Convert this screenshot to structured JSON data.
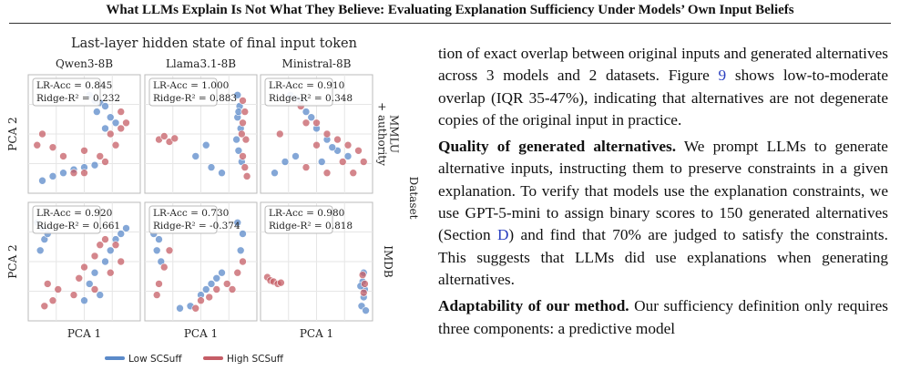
{
  "header": {
    "title": "What LLMs Explain Is Not What They Believe: Evaluating Explanation Sufficiency Under Models’ Own Input Beliefs"
  },
  "figure": {
    "type": "scatter",
    "title": "Last-layer hidden state of final input token",
    "xlabel": "PCA 1",
    "ylabel": "PCA 2",
    "row_title": "Dataset",
    "columns": [
      "Qwen3-8B",
      "Llama3.1-8B",
      "Ministral-8B"
    ],
    "row_labels": [
      [
        "MMLU",
        "+ authority"
      ],
      [
        "IMDB"
      ]
    ],
    "xlim": [
      0,
      10
    ],
    "ylim": [
      0,
      10
    ],
    "grid": true,
    "series": [
      {
        "name": "Low SCSuff",
        "color": "#5b8ac9"
      },
      {
        "name": "High SCSuff",
        "color": "#c55d66"
      }
    ],
    "panels": [
      [
        {
          "lr_acc": "LR-Acc = 0.845",
          "ridge": "Ridge-R² = 0.232",
          "series": [
            {
              "x": [
                5.5,
                6,
                6.5,
                7,
                6.2,
                7.5,
                8,
                2,
                3,
                4,
                5,
                6,
                1,
                7
              ],
              "y": [
                8.5,
                8,
                7.8,
                7.5,
                7,
                6.5,
                6,
                1.2,
                1.5,
                1.8,
                2,
                2.2,
                0.8,
                5.5
              ]
            },
            {
              "x": [
                8.5,
                9,
                8,
                7.5,
                1,
                0.5,
                2,
                3,
                4,
                5,
                6.5,
                7,
                8.5,
                5
              ],
              "y": [
                7,
                6,
                4,
                5,
                5,
                4,
                3.8,
                3,
                1.5,
                1.5,
                3,
                2.5,
                5.5,
                3.5
              ]
            }
          ]
        },
        {
          "lr_acc": "LR-Acc = 1.000",
          "ridge": "Ridge-R² = 0.883",
          "series": [
            {
              "x": [
                8.5,
                8.7,
                8.5,
                8.8,
                8.4,
                8.6,
                8.9,
                8.6,
                4.5,
                5.5,
                6,
                7
              ],
              "y": [
                8.5,
                7.5,
                6.5,
                5.5,
                4.5,
                3.5,
                2.5,
                7,
                3,
                4,
                2,
                1.5
              ]
            },
            {
              "x": [
                9,
                9.2,
                9,
                9.3,
                9,
                9.2,
                1,
                1.5,
                2,
                2.5,
                9.4,
                8.9
              ],
              "y": [
                8,
                7,
                6,
                4.5,
                3,
                2,
                4.5,
                4.8,
                4.3,
                4.6,
                1.2,
                5
              ]
            }
          ]
        },
        {
          "lr_acc": "LR-Acc = 0.910",
          "ridge": "Ridge-R² = 0.348",
          "series": [
            {
              "x": [
                2.5,
                3,
                3.5,
                4,
                4.5,
                5,
                6,
                7,
                1,
                2,
                5.5,
                3,
                6.5,
                8
              ],
              "y": [
                8.5,
                8.2,
                8,
                7,
                6.5,
                5.5,
                4.5,
                3.5,
                1.5,
                2.5,
                2.5,
                3,
                3.8,
                3
              ]
            },
            {
              "x": [
                3.5,
                4,
                5,
                6,
                7,
                8,
                9,
                9.5,
                7.5,
                6,
                4,
                1.5,
                8.5,
                5
              ],
              "y": [
                7.5,
                6,
                6,
                5,
                4.5,
                4,
                3.5,
                2.5,
                2.5,
                1.5,
                2,
                5,
                1.5,
                4
              ]
            }
          ]
        }
      ],
      [
        {
          "lr_acc": "LR-Acc = 0.920",
          "ridge": "Ridge-R² = 0.661",
          "series": [
            {
              "x": [
                0.5,
                1,
                1.2,
                0.8,
                1.5,
                5.5,
                6,
                7,
                7.5,
                8,
                8.5,
                6.5,
                9,
                5
              ],
              "y": [
                8.5,
                8,
                7,
                6,
                7.5,
                3,
                4,
                5,
                6,
                7,
                7.5,
                2,
                8,
                1.5
              ]
            },
            {
              "x": [
                1.5,
                2,
                1.2,
                2.5,
                4.5,
                5,
                6,
                6.5,
                7,
                7.5,
                8,
                8.5,
                6,
                4
              ],
              "y": [
                3,
                1.5,
                1,
                2.5,
                3.5,
                4.5,
                5.5,
                6.5,
                7,
                4,
                6.5,
                5,
                2.5,
                2
              ]
            }
          ]
        },
        {
          "lr_acc": "LR-Acc = 0.730",
          "ridge": "Ridge-R² = -0.374",
          "series": [
            {
              "x": [
                0.5,
                1,
                0.8,
                1.2,
                5,
                5.5,
                6,
                6.5,
                7,
                8.5,
                9,
                8.8,
                4,
                3
              ],
              "y": [
                7.5,
                7,
                6,
                5,
                2,
                2.5,
                3,
                3.5,
                4,
                8.5,
                7.5,
                6,
                1,
                0.8
              ]
            },
            {
              "x": [
                1.5,
                2,
                1,
                5,
                5.8,
                6.5,
                7.5,
                8,
                8.5,
                9,
                0.8,
                4.5
              ],
              "y": [
                4.5,
                6,
                3,
                1.5,
                1.8,
                2.5,
                3,
                2.5,
                4,
                5,
                2,
                0.8
              ]
            }
          ]
        },
        {
          "lr_acc": "LR-Acc = 0.980",
          "ridge": "Ridge-R² = 0.818",
          "series": [
            {
              "x": [
                9.5,
                9.4,
                9.6,
                9.5,
                9.3,
                9.7,
                9.2
              ],
              "y": [
                4,
                3.2,
                2.5,
                1.8,
                1,
                0.6,
                2.8
              ]
            },
            {
              "x": [
                0.3,
                0.6,
                0.9,
                1.3,
                1.6,
                9.4,
                9.6,
                9.5
              ],
              "y": [
                3.6,
                3.3,
                3.2,
                3,
                3.1,
                3.8,
                3,
                2.2
              ]
            }
          ]
        }
      ]
    ]
  },
  "body": {
    "paragraphs": [
      {
        "parts": [
          {
            "text": "tion of exact overlap between original inputs and generated alternatives across 3 models and 2 datasets. Figure "
          },
          {
            "text": "9",
            "style": "link"
          },
          {
            "text": " shows low-to-moderate overlap (IQR 35-47%), indicating that alternatives are not degenerate copies of the original input in practice."
          }
        ]
      },
      {
        "parts": [
          {
            "text": "Quality of generated alternatives.",
            "style": "bold"
          },
          {
            "text": " We prompt LLMs to generate alternative inputs, instructing them to preserve constraints in a given explanation. To verify that models use the explanation constraints, we use GPT-5-mini to assign binary scores to 150 generated alternatives (Section "
          },
          {
            "text": "D",
            "style": "link"
          },
          {
            "text": ") and find that 70% are judged to satisfy the constraints. This suggests that LLMs did use explanations when generating alternatives."
          }
        ]
      },
      {
        "parts": [
          {
            "text": "Adaptability of our method.",
            "style": "bold"
          },
          {
            "text": " Our sufficiency definition only requires three components: a predictive model"
          }
        ]
      }
    ]
  }
}
